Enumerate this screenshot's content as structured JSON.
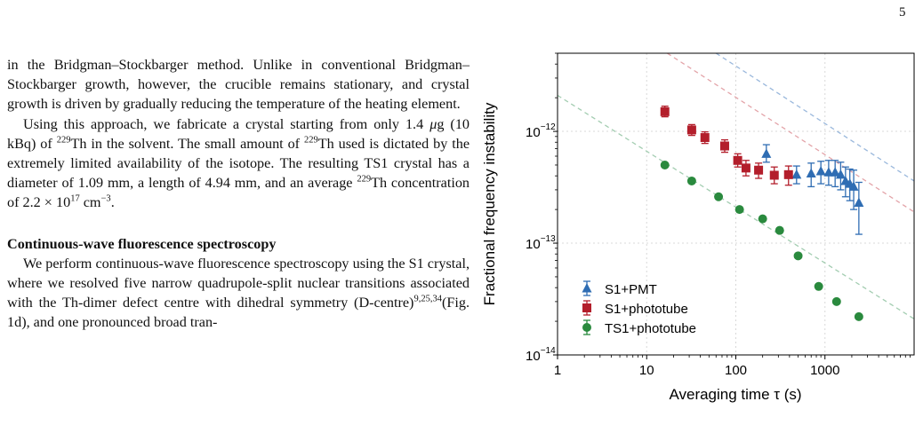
{
  "page": {
    "number": "5"
  },
  "text": {
    "p1": "in the Bridgman–Stockbarger method. Unlike in conventional Bridgman–Stockbarger growth, however, the crucible remains stationary, and crystal growth is driven by gradually reducing the temperature of the heating element.",
    "p2": {
      "a": "Using this approach, we fabricate a crystal starting from only 1.4 ",
      "mu": "μ",
      "b": "g (10 kBq) of ",
      "sup1": "229",
      "c": "Th in the solvent. The small amount of ",
      "sup2": "229",
      "d": "Th used is dictated by the extremely limited availability of the isotope. The resulting TS1 crystal has a diameter of 1.09 mm, a length of 4.94 mm, and an average ",
      "sup3": "229",
      "e": "Th concentration of 2.2 × 10",
      "sup4": "17",
      "f": " cm",
      "sup5": "−3",
      "g": "."
    },
    "heading": "Continuous-wave fluorescence spectroscopy",
    "p3": {
      "a": "We perform continuous-wave fluorescence spectroscopy using the S1 crystal, where we resolved five narrow quadrupole-split nuclear transitions associated with the Th-dimer defect centre with dihedral symmetry (D-centre)",
      "sup": "9,25,34",
      "b": "(Fig. 1d), and one pronounced broad tran-"
    }
  },
  "chart_data": {
    "type": "scatter",
    "xlabel": "Averaging time τ (s)",
    "ylabel": "Fractional frequency instability",
    "xscale": "log",
    "yscale": "log",
    "xlim": [
      1,
      10000
    ],
    "ylim": [
      1e-14,
      5e-12
    ],
    "xticks": [
      {
        "v": 1,
        "label": "1"
      },
      {
        "v": 10,
        "label": "10"
      },
      {
        "v": 100,
        "label": "100"
      },
      {
        "v": 1000,
        "label": "1000"
      }
    ],
    "yticks": [
      {
        "v": 1e-14,
        "base": "10",
        "exp": "−14"
      },
      {
        "v": 1e-13,
        "base": "10",
        "exp": "−13"
      },
      {
        "v": 1e-12,
        "base": "10",
        "exp": "−12"
      }
    ],
    "grid": true,
    "legend_position": "bottom-left",
    "series": [
      {
        "name": "S1+PMT",
        "marker": "triangle",
        "color": "#2f6db3",
        "points": [
          [
            220,
            6.3e-13,
            5.3e-13,
            7.6e-13
          ],
          [
            480,
            4.1e-13,
            3.4e-13,
            4.9e-13
          ],
          [
            700,
            4.2e-13,
            3.2e-13,
            5.2e-13
          ],
          [
            900,
            4.4e-13,
            3.4e-13,
            5.4e-13
          ],
          [
            1100,
            4.3e-13,
            3.3e-13,
            5.5e-13
          ],
          [
            1300,
            4.3e-13,
            3.2e-13,
            5.5e-13
          ],
          [
            1500,
            4.1e-13,
            3e-13,
            5.3e-13
          ],
          [
            1700,
            3.6e-13,
            2.6e-13,
            4.8e-13
          ],
          [
            1900,
            3.4e-13,
            2.4e-13,
            4.6e-13
          ],
          [
            2100,
            3.2e-13,
            2e-13,
            4.5e-13
          ],
          [
            2400,
            2.3e-13,
            1.2e-13,
            3.5e-13
          ]
        ]
      },
      {
        "name": "S1+phototube",
        "marker": "square",
        "color": "#b31e2b",
        "points": [
          [
            16,
            1.5e-12,
            1.35e-12,
            1.68e-12
          ],
          [
            32,
            1.03e-12,
            9.2e-13,
            1.15e-12
          ],
          [
            45,
            8.8e-13,
            7.8e-13,
            9.9e-13
          ],
          [
            75,
            7.4e-13,
            6.5e-13,
            8.4e-13
          ],
          [
            105,
            5.5e-13,
            4.8e-13,
            6.3e-13
          ],
          [
            130,
            4.7e-13,
            4e-13,
            5.5e-13
          ],
          [
            180,
            4.5e-13,
            3.8e-13,
            5.2e-13
          ],
          [
            270,
            4.05e-13,
            3.4e-13,
            4.8e-13
          ],
          [
            390,
            4.1e-13,
            3.3e-13,
            4.9e-13
          ]
        ]
      },
      {
        "name": "TS1+phototube",
        "marker": "circle",
        "color": "#2a8a3e",
        "points": [
          [
            16,
            5e-13
          ],
          [
            32,
            3.6e-13
          ],
          [
            64,
            2.6e-13
          ],
          [
            110,
            2e-13
          ],
          [
            200,
            1.65e-13
          ],
          [
            310,
            1.3e-13
          ],
          [
            500,
            7.7e-14
          ],
          [
            850,
            4.1e-14
          ],
          [
            1350,
            3e-14
          ],
          [
            2400,
            2.2e-14
          ]
        ]
      }
    ],
    "reference_lines": [
      {
        "color": "#9ab8dc",
        "points": [
          [
            60,
            5e-12
          ],
          [
            10000,
            3.6e-13
          ]
        ]
      },
      {
        "color": "#e3a3a8",
        "points": [
          [
            17,
            5e-12
          ],
          [
            10000,
            1.9e-13
          ]
        ]
      },
      {
        "color": "#a3cdb1",
        "points": [
          [
            1,
            2.1e-12
          ],
          [
            10000,
            2.1e-14
          ]
        ]
      }
    ]
  }
}
